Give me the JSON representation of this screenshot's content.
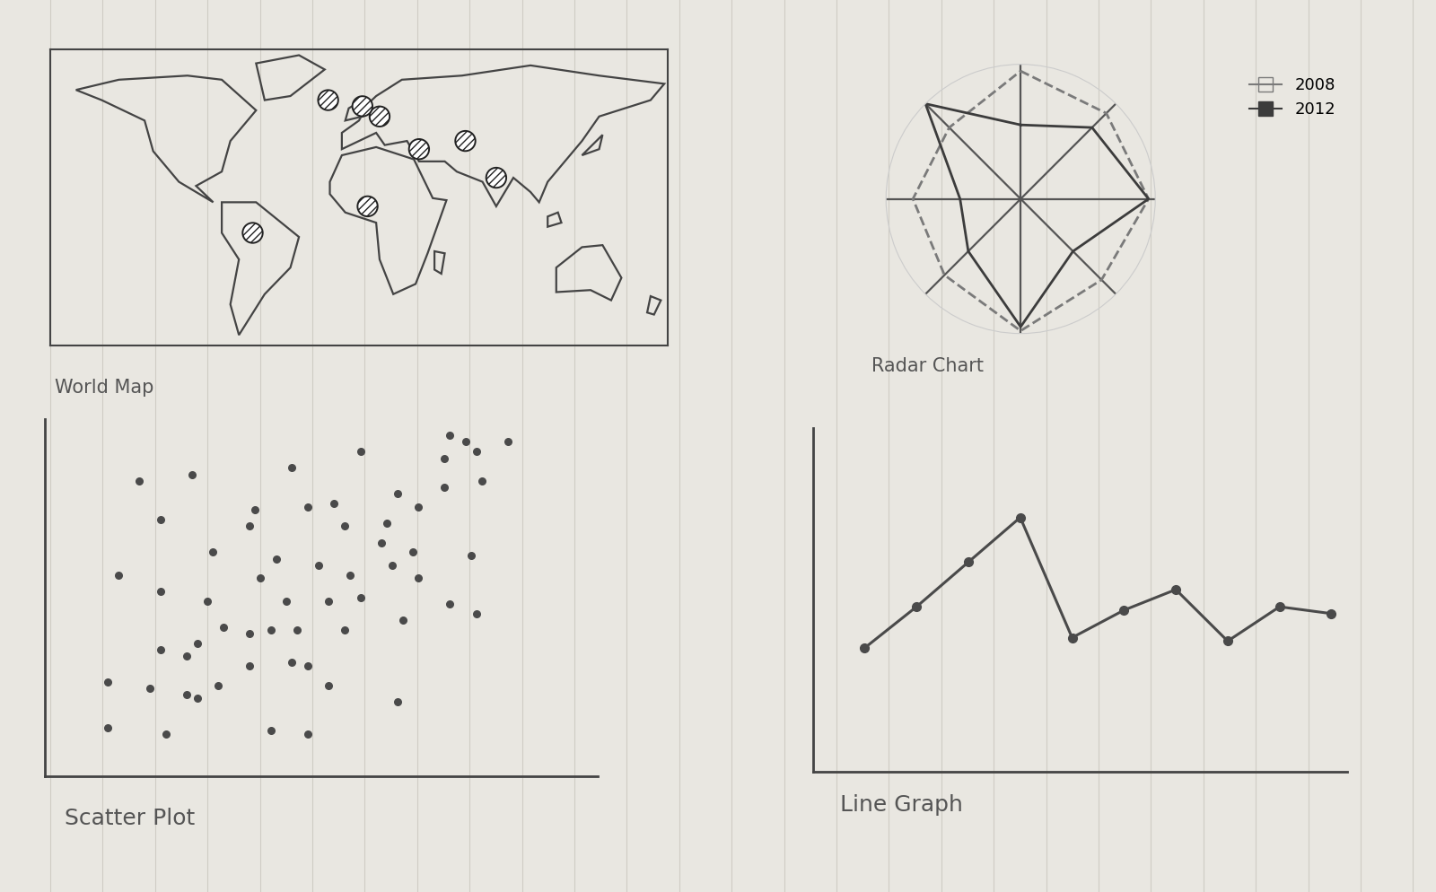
{
  "chart_data": [
    {
      "type": "map",
      "title": "World Map",
      "points": {
        "lon": [
          -62,
          -18,
          12,
          5,
          35,
          62,
          80,
          2
        ],
        "lat": [
          -5,
          60,
          52,
          8,
          36,
          40,
          22,
          57
        ]
      },
      "xlim": [
        -180,
        180
      ],
      "ylim": [
        -60,
        85
      ],
      "tick_labels": false
    },
    {
      "type": "radar",
      "title": "Radar Chart",
      "categories": [
        null,
        null,
        null,
        null,
        null,
        null,
        null,
        null
      ],
      "ylim": [
        0,
        100
      ],
      "grid": true,
      "legend": "upper right",
      "tick_labels": false,
      "series": [
        {
          "name": "2008",
          "color": "#7a7a7a",
          "line_style": "dashed",
          "marker": "open_square",
          "values": [
            95,
            90,
            95,
            85,
            98,
            80,
            80,
            75
          ]
        },
        {
          "name": "2012",
          "color": "#3c3c3c",
          "line_style": "solid",
          "marker": "square",
          "values": [
            55,
            75,
            95,
            55,
            95,
            55,
            45,
            100
          ]
        }
      ]
    },
    {
      "type": "scatter",
      "title": "Scatter Plot",
      "color": "#4a4a4a",
      "marker": "circle",
      "x": [
        18,
        28,
        47,
        60,
        76,
        77,
        80,
        82,
        88,
        22,
        40,
        39,
        50,
        55,
        57,
        65,
        67,
        71,
        76,
        83,
        32,
        44,
        52,
        64,
        70,
        81,
        14,
        22,
        31,
        41,
        46,
        54,
        58,
        60,
        66,
        71,
        77,
        82,
        34,
        39,
        43,
        48,
        57,
        68,
        22,
        27,
        29,
        39,
        47,
        50,
        12,
        20,
        27,
        29,
        33,
        54,
        67,
        12,
        23,
        43,
        50
      ],
      "values": [
        91,
        93,
        95,
        100,
        98,
        105,
        103,
        100,
        103,
        79,
        82,
        77,
        83,
        84,
        77,
        78,
        87,
        83,
        89,
        91,
        69,
        67,
        65,
        72,
        69,
        68,
        62,
        57,
        54,
        61,
        54,
        54,
        62,
        55,
        65,
        61,
        53,
        50,
        46,
        44,
        45,
        45,
        45,
        48,
        39,
        37,
        41,
        34,
        35,
        34,
        29,
        27,
        25,
        24,
        28,
        28,
        23,
        15,
        13,
        14,
        13
      ],
      "xlim": [
        0,
        105
      ],
      "ylim": [
        0,
        110
      ],
      "tick_labels": false
    },
    {
      "type": "line",
      "title": "Line Graph",
      "color": "#4a4a4a",
      "marker": "circle",
      "line_style": "solid",
      "x": [
        1,
        2,
        3,
        4,
        5,
        6,
        7,
        8,
        9,
        10
      ],
      "values": [
        36,
        48,
        61,
        74,
        39,
        47,
        53,
        38,
        48,
        46
      ],
      "xlim": [
        0,
        10.3
      ],
      "ylim": [
        0,
        100
      ],
      "tick_labels": false
    }
  ]
}
